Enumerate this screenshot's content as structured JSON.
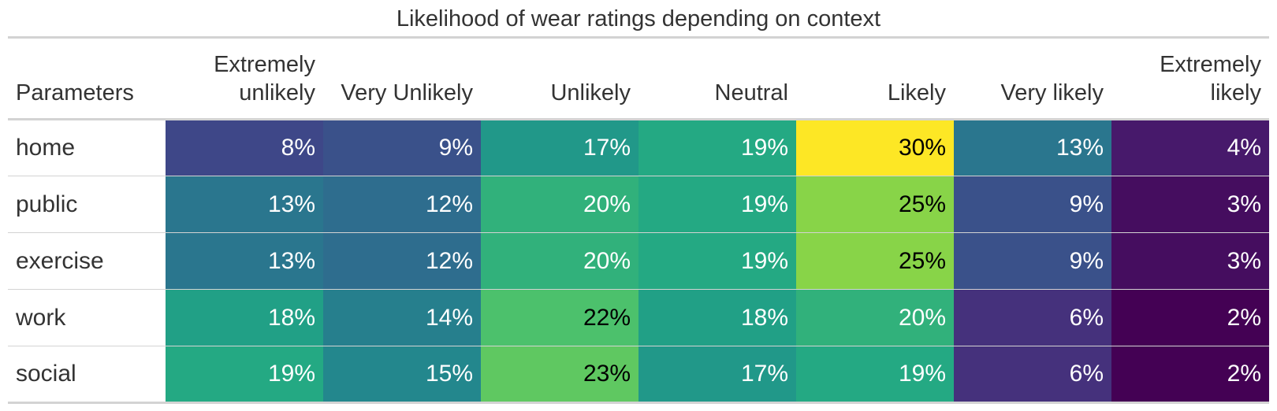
{
  "chart_data": {
    "type": "table",
    "title": "Likelihood of wear ratings depending on context",
    "columns": [
      "Parameters",
      "Extremely unlikely",
      "Very Unlikely",
      "Unlikely",
      "Neutral",
      "Likely",
      "Very likely",
      "Extremely likely"
    ],
    "rows": [
      {
        "label": "home",
        "values": [
          8,
          9,
          17,
          19,
          30,
          13,
          4
        ]
      },
      {
        "label": "public",
        "values": [
          13,
          12,
          20,
          19,
          25,
          9,
          3
        ]
      },
      {
        "label": "exercise",
        "values": [
          13,
          12,
          20,
          19,
          25,
          9,
          3
        ]
      },
      {
        "label": "work",
        "values": [
          18,
          14,
          22,
          18,
          20,
          6,
          2
        ]
      },
      {
        "label": "social",
        "values": [
          19,
          15,
          23,
          17,
          19,
          6,
          2
        ]
      }
    ],
    "value_suffix": "%",
    "color_scale": "viridis",
    "color_domain": [
      2,
      30
    ]
  }
}
